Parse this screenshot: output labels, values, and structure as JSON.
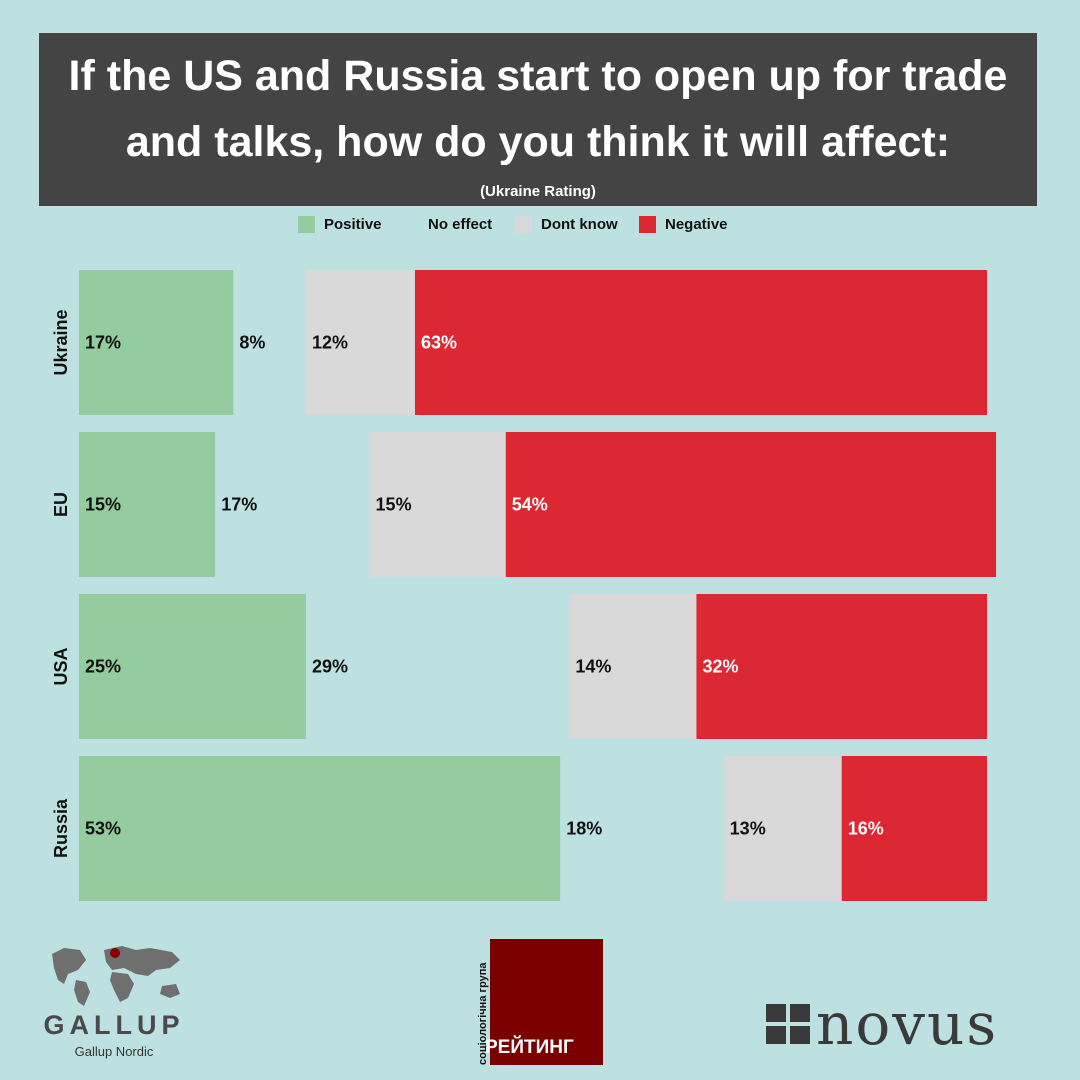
{
  "header": {
    "title": "If the US and Russia start to open up for trade and talks, how do you think it will affect:",
    "subtitle": "(Ukraine Rating)"
  },
  "legend": [
    {
      "label": "Positive",
      "color": "#94cb9f",
      "swatch": true
    },
    {
      "label": "No effect",
      "color": "#bde0e0",
      "swatch": false
    },
    {
      "label": "Dont know",
      "color": "#d9d9d9",
      "swatch": true
    },
    {
      "label": "Negative",
      "color": "#dc2832",
      "swatch": true
    }
  ],
  "chart_data": {
    "type": "bar",
    "orientation": "horizontal",
    "stacked": true,
    "categories": [
      "Ukraine",
      "EU",
      "USA",
      "Russia"
    ],
    "series": [
      {
        "name": "Positive",
        "color": "#94cb9f",
        "label_color": "#111111",
        "values": [
          17,
          15,
          25,
          53
        ]
      },
      {
        "name": "No effect",
        "color": "#bde0e0",
        "label_color": "#111111",
        "values": [
          8,
          17,
          29,
          18
        ]
      },
      {
        "name": "Dont know",
        "color": "#d9d9d9",
        "label_color": "#111111",
        "values": [
          12,
          15,
          14,
          13
        ]
      },
      {
        "name": "Negative",
        "color": "#dc2832",
        "label_color": "#ffffff",
        "values": [
          63,
          54,
          32,
          16
        ]
      }
    ],
    "value_suffix": "%",
    "xlim": [
      0,
      100
    ],
    "grid": false,
    "legend_position": "top"
  },
  "logos": {
    "gallup_word": "GALLUP",
    "gallup_sub": "Gallup Nordic",
    "rating_side": "соціологічна група",
    "rating_word": "РЕЙТИНГ",
    "novus_word": "novus"
  }
}
